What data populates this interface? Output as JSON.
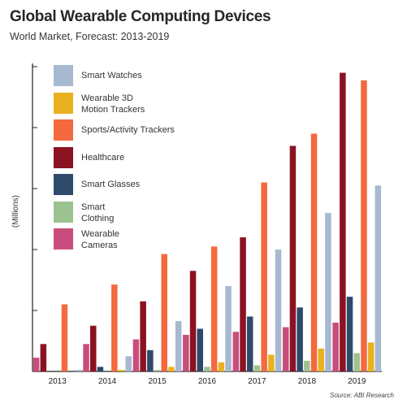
{
  "title": "Global Wearable Computing Devices",
  "subtitle": "World Market, Forecast: 2013-2019",
  "ylabel": "(Millions)",
  "source": "Source: ABI Research",
  "chart_data": {
    "type": "bar",
    "categories": [
      "2013",
      "2014",
      "2015",
      "2016",
      "2017",
      "2018",
      "2019"
    ],
    "ylabel": "(Millions)",
    "ylim": [
      0,
      100
    ],
    "grid": false,
    "legend_position": "top-left",
    "series": [
      {
        "name": "Wearable Cameras",
        "color": "#c94d7c",
        "values": [
          4.5,
          9,
          10.5,
          12,
          13,
          14.5,
          16
        ]
      },
      {
        "name": "Healthcare",
        "color": "#8b1221",
        "values": [
          9,
          15,
          23,
          33,
          44,
          74,
          98
        ]
      },
      {
        "name": "Smart Glasses",
        "color": "#2d4a6b",
        "values": [
          0,
          1.5,
          7,
          14,
          18,
          21,
          24.5
        ]
      },
      {
        "name": "Smart Clothing",
        "color": "#9cc38f",
        "values": [
          0,
          0,
          0.5,
          1.5,
          2,
          3.5,
          6
        ]
      },
      {
        "name": "Sports/Activity Trackers",
        "color": "#f26a3e",
        "values": [
          22,
          28.5,
          38.5,
          41,
          62,
          78,
          95.5
        ]
      },
      {
        "name": "Wearable 3D Motion Trackers",
        "color": "#e9b11f",
        "values": [
          0,
          0.5,
          1.5,
          3,
          5.5,
          7.5,
          9.5
        ]
      },
      {
        "name": "Smart Watches",
        "color": "#a7b8d1",
        "values": [
          0.5,
          5,
          16.5,
          28,
          40,
          52,
          61
        ]
      }
    ],
    "legend_order": [
      "Smart Watches",
      "Wearable 3D Motion Trackers",
      "Sports/Activity Trackers",
      "Healthcare",
      "Smart Glasses",
      "Smart Clothing",
      "Wearable Cameras"
    ]
  },
  "legend": [
    {
      "label": "Smart Watches",
      "color": "#a7b8d1"
    },
    {
      "label": "Wearable 3D\nMotion Trackers",
      "color": "#e9b11f"
    },
    {
      "label": "Sports/Activity Trackers",
      "color": "#f26a3e"
    },
    {
      "label": "Healthcare",
      "color": "#8b1221"
    },
    {
      "label": "Smart Glasses",
      "color": "#2d4a6b"
    },
    {
      "label": "Smart\nClothing",
      "color": "#9cc38f"
    },
    {
      "label": "Wearable\nCameras",
      "color": "#c94d7c"
    }
  ]
}
